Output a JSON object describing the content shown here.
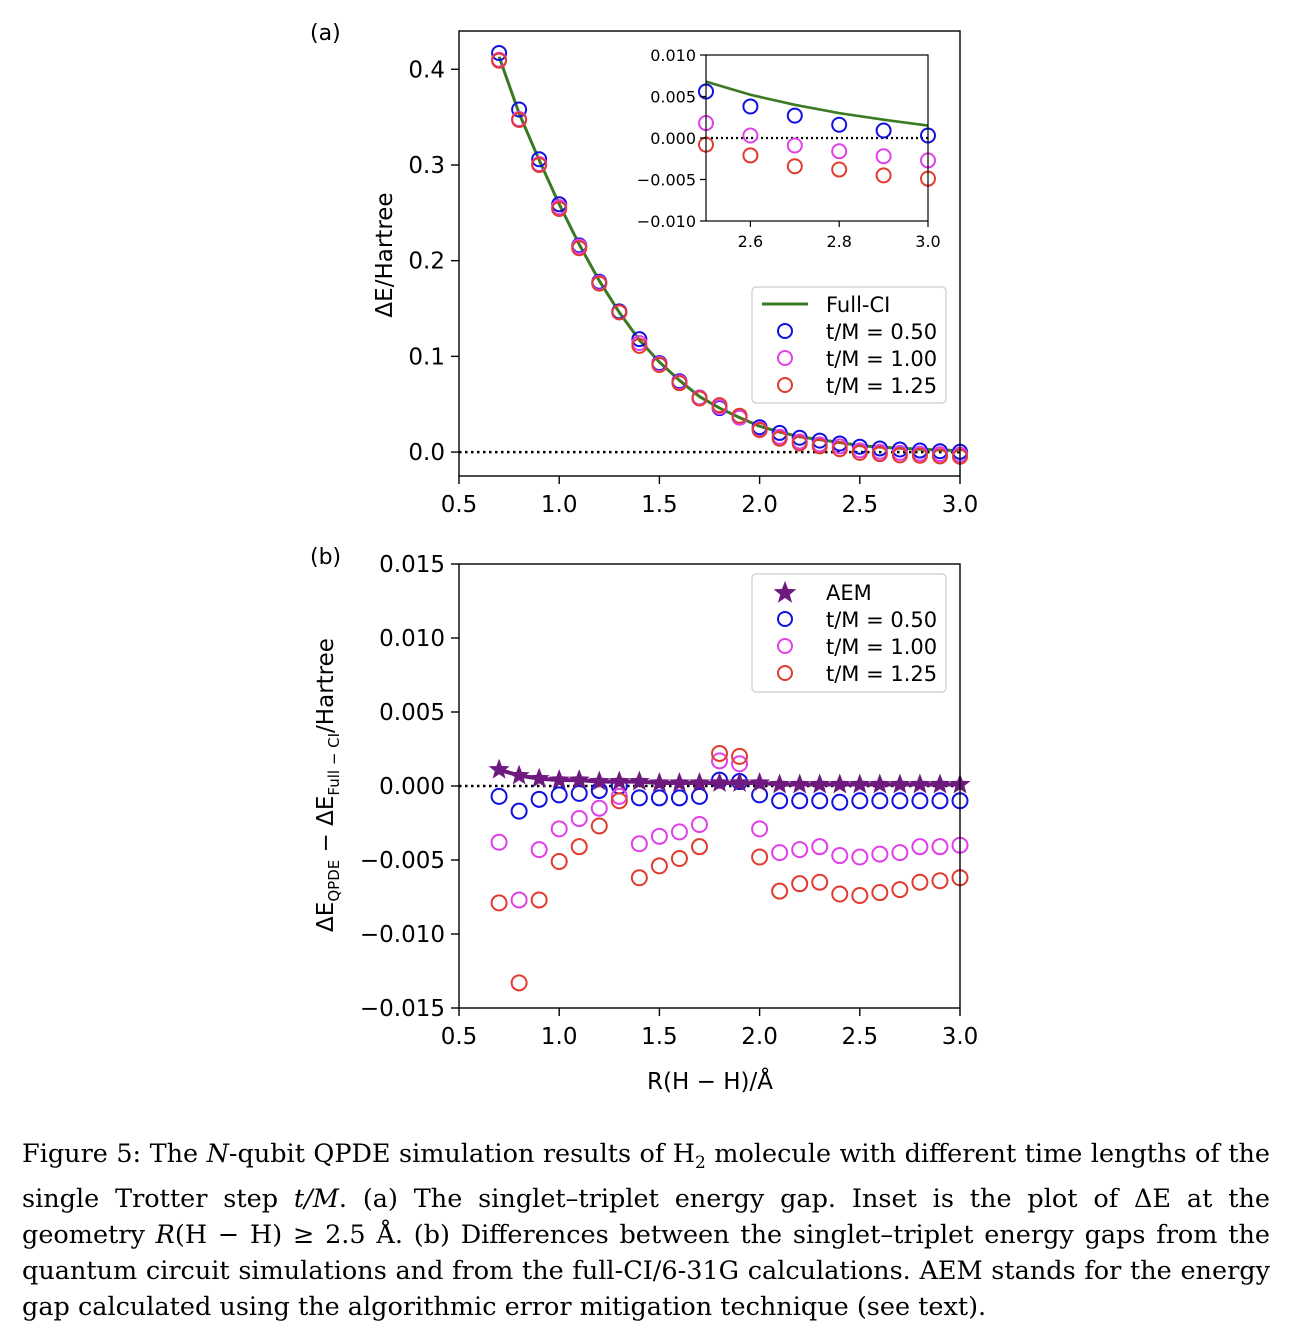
{
  "colors": {
    "fullci": "#3a7a23",
    "tm050": "#1010e0",
    "tm100": "#e040e8",
    "tm125": "#e03b2e",
    "aem": "#6e1a7e"
  },
  "chart_data": [
    {
      "panel_label": "(a)",
      "type": "scatter",
      "ylabel": "ΔE/Hartree",
      "xlim": [
        0.5,
        3.0
      ],
      "ylim": [
        -0.025,
        0.44
      ],
      "xticks": [
        "0.5",
        "1.0",
        "1.5",
        "2.0",
        "2.5",
        "3.0"
      ],
      "yticks": [
        "0.0",
        "0.1",
        "0.2",
        "0.3",
        "0.4"
      ],
      "legend_position": "right",
      "legend": [
        "Full-CI",
        "t/M = 0.50",
        "t/M = 1.00",
        "t/M = 1.25"
      ],
      "x": [
        0.7,
        0.8,
        0.9,
        1.0,
        1.1,
        1.2,
        1.3,
        1.4,
        1.5,
        1.6,
        1.7,
        1.8,
        1.9,
        2.0,
        2.1,
        2.2,
        2.3,
        2.4,
        2.5,
        2.6,
        2.7,
        2.8,
        2.9,
        3.0
      ],
      "fullci": [
        0.413,
        0.354,
        0.305,
        0.259,
        0.217,
        0.179,
        0.146,
        0.117,
        0.094,
        0.075,
        0.058,
        0.046,
        0.036,
        0.027,
        0.021,
        0.016,
        0.013,
        0.01,
        0.0068,
        0.0052,
        0.004,
        0.003,
        0.0022,
        0.0015
      ],
      "series": [
        {
          "name": "t/M = 0.50",
          "values": [
            0.417,
            0.358,
            0.306,
            0.259,
            0.216,
            0.178,
            0.147,
            0.118,
            0.093,
            0.074,
            0.057,
            0.046,
            0.036,
            0.026,
            0.02,
            0.015,
            0.012,
            0.009,
            0.0056,
            0.0038,
            0.0027,
            0.0016,
            0.0009,
            0.0003
          ]
        },
        {
          "name": "t/M = 1.00",
          "values": [
            0.41,
            0.348,
            0.301,
            0.256,
            0.215,
            0.177,
            0.146,
            0.114,
            0.092,
            0.073,
            0.057,
            0.047,
            0.036,
            0.024,
            0.016,
            0.011,
            0.008,
            0.006,
            0.0018,
            0.0003,
            -0.0009,
            -0.0016,
            -0.0022,
            -0.0027
          ]
        },
        {
          "name": "t/M = 1.25",
          "values": [
            0.409,
            0.347,
            0.3,
            0.254,
            0.213,
            0.176,
            0.146,
            0.111,
            0.091,
            0.072,
            0.056,
            0.049,
            0.038,
            0.023,
            0.014,
            0.009,
            0.006,
            0.003,
            -0.0008,
            -0.0021,
            -0.0034,
            -0.0038,
            -0.0045,
            -0.0049
          ]
        }
      ],
      "inset": {
        "xlim": [
          2.5,
          3.0
        ],
        "ylim": [
          -0.01,
          0.01
        ],
        "xticks": [
          "2.6",
          "2.8",
          "3.0"
        ],
        "yticks": [
          "0.010",
          "0.005",
          "0.000",
          "−0.005",
          "−0.010"
        ]
      }
    },
    {
      "panel_label": "(b)",
      "type": "scatter",
      "xlabel": "R(H − H)/Å",
      "ylabel": "ΔE_QPDE − ΔE_Full−CI/Hartree",
      "xlim": [
        0.5,
        3.0
      ],
      "ylim": [
        -0.015,
        0.015
      ],
      "xticks": [
        "0.5",
        "1.0",
        "1.5",
        "2.0",
        "2.5",
        "3.0"
      ],
      "yticks": [
        "0.015",
        "0.010",
        "0.005",
        "0.000",
        "−0.005",
        "−0.010",
        "−0.015"
      ],
      "legend_position": "top-right",
      "legend": [
        "AEM",
        "t/M = 0.50",
        "t/M = 1.00",
        "t/M = 1.25"
      ],
      "x": [
        0.7,
        0.8,
        0.9,
        1.0,
        1.1,
        1.2,
        1.3,
        1.4,
        1.5,
        1.6,
        1.7,
        1.8,
        1.9,
        2.0,
        2.1,
        2.2,
        2.3,
        2.4,
        2.5,
        2.6,
        2.7,
        2.8,
        2.9,
        3.0
      ],
      "series": [
        {
          "name": "AEM",
          "values": [
            0.0011,
            0.0007,
            0.0005,
            0.0004,
            0.0004,
            0.0003,
            0.0003,
            0.0003,
            0.0002,
            0.0002,
            0.0002,
            0.0002,
            0.0002,
            0.0002,
            0.0001,
            0.0001,
            0.0001,
            0.0001,
            0.0001,
            0.0001,
            0.0001,
            0.0001,
            0.0001,
            0.0001
          ]
        },
        {
          "name": "t/M = 0.50",
          "values": [
            -0.0007,
            -0.0017,
            -0.0009,
            -0.0006,
            -0.0005,
            -0.0003,
            0.0,
            -0.0008,
            -0.0008,
            -0.0008,
            -0.0007,
            0.0004,
            0.0003,
            -0.0006,
            -0.001,
            -0.001,
            -0.001,
            -0.0011,
            -0.001,
            -0.001,
            -0.001,
            -0.001,
            -0.001,
            -0.001
          ]
        },
        {
          "name": "t/M = 1.00",
          "values": [
            -0.0038,
            -0.0077,
            -0.0043,
            -0.0029,
            -0.0022,
            -0.0015,
            -0.0007,
            -0.0039,
            -0.0034,
            -0.0031,
            -0.0026,
            0.0017,
            0.0015,
            -0.0029,
            -0.0045,
            -0.0043,
            -0.0041,
            -0.0047,
            -0.0048,
            -0.0046,
            -0.0045,
            -0.0041,
            -0.0041,
            -0.004
          ]
        },
        {
          "name": "t/M = 1.25",
          "values": [
            -0.0079,
            -0.0133,
            -0.0077,
            -0.0051,
            -0.0041,
            -0.0027,
            -0.001,
            -0.0062,
            -0.0054,
            -0.0049,
            -0.0041,
            0.0022,
            0.002,
            -0.0048,
            -0.0071,
            -0.0066,
            -0.0065,
            -0.0073,
            -0.0074,
            -0.0072,
            -0.007,
            -0.0065,
            -0.0064,
            -0.0062
          ]
        }
      ]
    }
  ],
  "caption": {
    "p1": "Figure 5:  The ",
    "p2": "N",
    "p3": "-qubit QPDE simulation results of H",
    "p4": "2",
    "p5": " molecule with different time lengths of the single Trotter step ",
    "p6": "t/M",
    "p7": ". (a) The singlet–triplet energy gap. Inset is the plot of ΔE at the geometry ",
    "p8": "R",
    "p9": "(H − H) ≥ 2.5 Å. (b) Differences between the singlet–triplet energy gaps from the quantum circuit simulations and from the full-CI/6-31G calculations. AEM stands for the energy gap calculated using the algorithmic error mitigation technique (see text)."
  }
}
